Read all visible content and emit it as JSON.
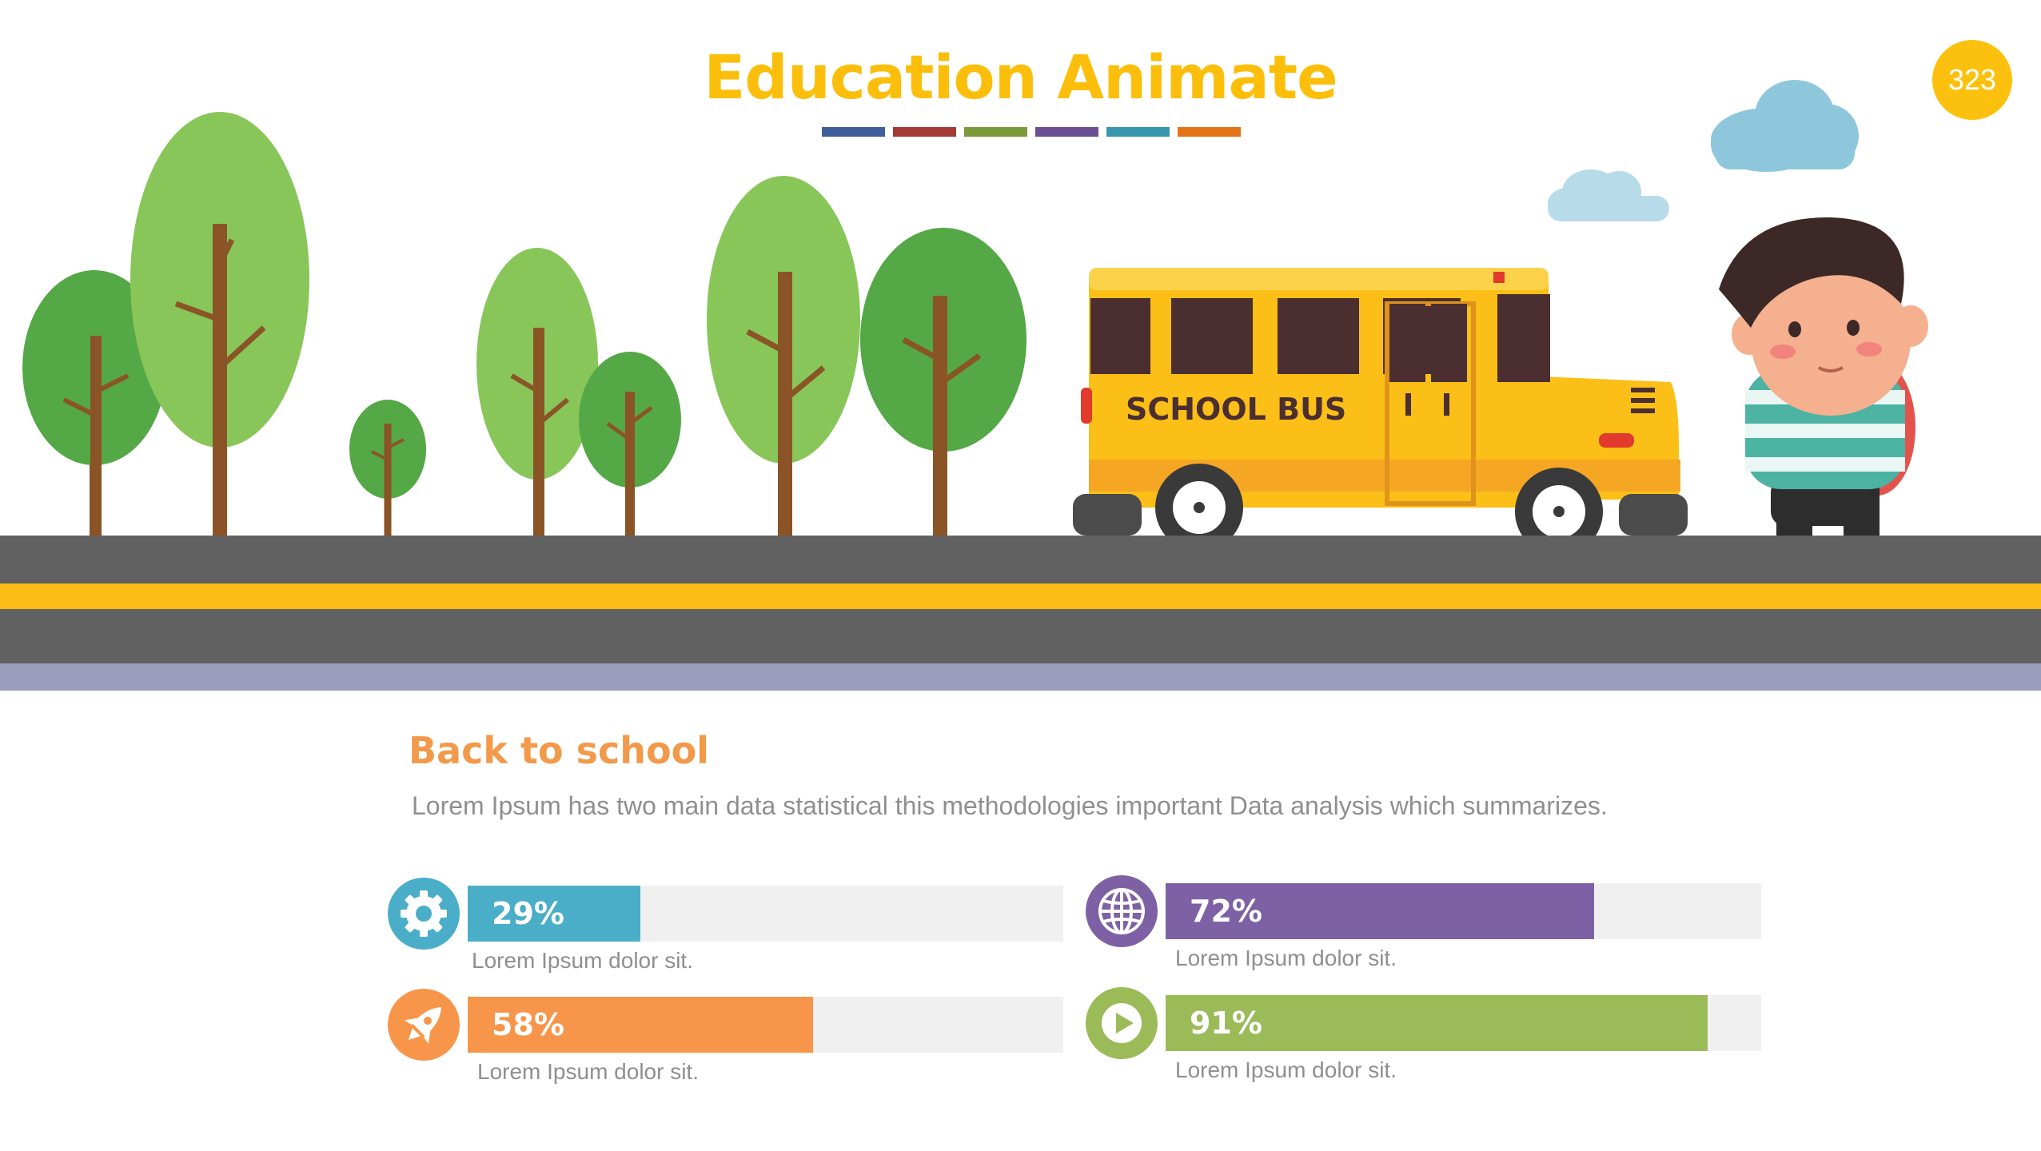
{
  "title": "Education Animate",
  "page_number": "323",
  "colors": {
    "title": "#fbbf0b",
    "badge": "#fcc10e",
    "section_title": "#f2994a",
    "swatches": [
      "#3f5d9b",
      "#a23a36",
      "#7b9a3c",
      "#6a4f93",
      "#3796ad",
      "#e27317"
    ]
  },
  "scene": {
    "bus_label": "SCHOOL BUS"
  },
  "section": {
    "title": "Back to school",
    "body": "Lorem Ipsum has two main data statistical this methodologies important Data analysis which summarizes."
  },
  "stats": [
    {
      "icon": "gear-icon",
      "value": 29,
      "label": "29%",
      "caption": "Lorem Ipsum dolor sit.",
      "color": "#4aaec8"
    },
    {
      "icon": "globe-icon",
      "value": 72,
      "label": "72%",
      "caption": "Lorem Ipsum dolor sit.",
      "color": "#7e61a4"
    },
    {
      "icon": "rocket-icon",
      "value": 58,
      "label": "58%",
      "caption": "Lorem Ipsum dolor sit.",
      "color": "#f7964a"
    },
    {
      "icon": "play-icon",
      "value": 91,
      "label": "91%",
      "caption": "Lorem Ipsum dolor sit.",
      "color": "#9bbb59"
    }
  ]
}
